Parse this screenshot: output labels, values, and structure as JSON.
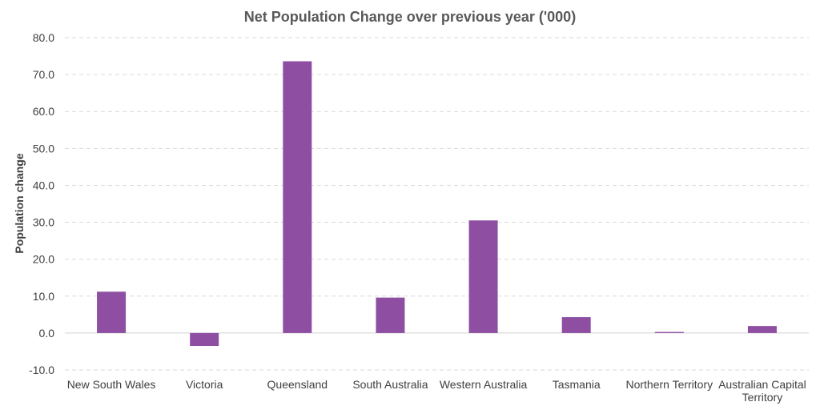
{
  "chart_data": {
    "type": "bar",
    "title": "Net Population Change over previous year ('000)",
    "xlabel": "",
    "ylabel": "Population change",
    "categories": [
      [
        "New South Wales"
      ],
      [
        "Victoria"
      ],
      [
        "Queensland"
      ],
      [
        "South Australia"
      ],
      [
        "Western Australia"
      ],
      [
        "Tasmania"
      ],
      [
        "Northern Territory"
      ],
      [
        "Australian Capital",
        "Territory"
      ]
    ],
    "values": [
      11.2,
      -3.5,
      73.6,
      9.6,
      30.5,
      4.3,
      0.3,
      1.9
    ],
    "ylim": [
      -10,
      80
    ],
    "yticks": [
      "80.0",
      "70.0",
      "60.0",
      "50.0",
      "40.0",
      "30.0",
      "20.0",
      "10.0",
      "0.0",
      "-10.0"
    ],
    "grid": true,
    "bar_color": "#8e4fa3"
  }
}
